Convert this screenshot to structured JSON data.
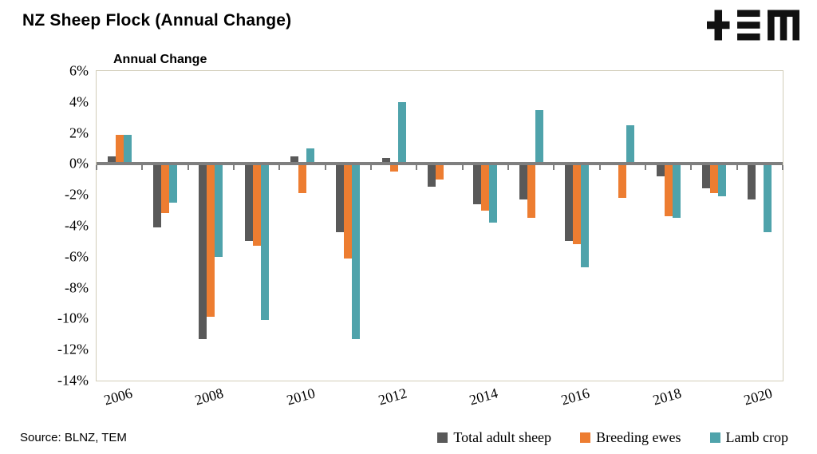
{
  "page": {
    "title": "NZ Sheep Flock (Annual Change)",
    "source": "Source: BLNZ, TEM",
    "logo": "TEM"
  },
  "chart_data": {
    "type": "bar",
    "title": "Annual Change",
    "categories": [
      "2006",
      "2007",
      "2008",
      "2009",
      "2010",
      "2011",
      "2012",
      "2013",
      "2014",
      "2015",
      "2016",
      "2017",
      "2018",
      "2019",
      "2020"
    ],
    "series": [
      {
        "name": "Total adult sheep",
        "color": "#595959",
        "values": [
          0.5,
          -4.1,
          -11.3,
          -5.0,
          0.5,
          -4.4,
          0.4,
          -1.5,
          -2.6,
          -2.3,
          -5.0,
          -0.1,
          -0.8,
          -1.6,
          -2.3
        ]
      },
      {
        "name": "Breeding ewes",
        "color": "#ED7D31",
        "values": [
          1.9,
          -3.2,
          -9.9,
          -5.3,
          -1.9,
          -6.1,
          -0.5,
          -1.0,
          -3.0,
          -3.5,
          -5.2,
          -2.2,
          -3.4,
          -1.9,
          0
        ]
      },
      {
        "name": "Lamb crop",
        "color": "#4FA3AB",
        "values": [
          1.9,
          -2.5,
          -6.0,
          -10.1,
          1.0,
          -11.3,
          4.0,
          0,
          -3.8,
          3.5,
          -6.7,
          2.5,
          -3.5,
          -2.1,
          -4.4
        ]
      }
    ],
    "ylim": [
      -14,
      6
    ],
    "y_ticks": [
      {
        "label": "6%",
        "value": 6
      },
      {
        "label": "4%",
        "value": 4
      },
      {
        "label": "2%",
        "value": 2
      },
      {
        "label": "0%",
        "value": 0
      },
      {
        "label": "-2%",
        "value": -2
      },
      {
        "label": "-4%",
        "value": -4
      },
      {
        "label": "-6%",
        "value": -6
      },
      {
        "label": "-8%",
        "value": -8
      },
      {
        "label": "-10%",
        "value": -10
      },
      {
        "label": "-12%",
        "value": -12
      },
      {
        "label": "-14%",
        "value": -14
      }
    ],
    "x_ticks": [
      {
        "label": "2006",
        "group": 0
      },
      {
        "label": "2008",
        "group": 2
      },
      {
        "label": "2010",
        "group": 4
      },
      {
        "label": "2012",
        "group": 6
      },
      {
        "label": "2014",
        "group": 8
      },
      {
        "label": "2016",
        "group": 10
      },
      {
        "label": "2018",
        "group": 12
      },
      {
        "label": "2020",
        "group": 14
      }
    ],
    "grid": false,
    "legend_position": "bottom-right",
    "axis_color": "#7f7f7f",
    "border_color": "#d2cdb9"
  }
}
